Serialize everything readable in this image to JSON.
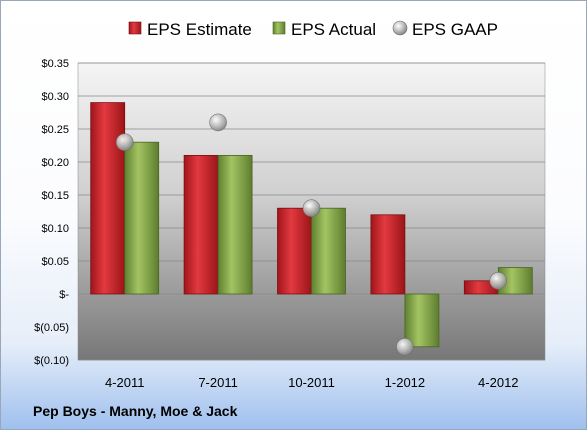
{
  "chart_data": {
    "type": "bar",
    "title": "",
    "footer": "Pep Boys - Manny, Moe & Jack",
    "xlabel": "",
    "ylabel": "",
    "categories": [
      "4-2011",
      "7-2011",
      "10-2011",
      "1-2012",
      "4-2012"
    ],
    "series": [
      {
        "name": "EPS Estimate",
        "kind": "bar",
        "color": "#d42027",
        "values": [
          0.29,
          0.21,
          0.13,
          0.12,
          0.02
        ]
      },
      {
        "name": "EPS Actual",
        "kind": "bar",
        "color": "#8cb04a",
        "values": [
          0.23,
          0.21,
          0.13,
          -0.08,
          0.04
        ]
      },
      {
        "name": "EPS GAAP",
        "kind": "marker",
        "color": "#a6a6a6",
        "values": [
          0.23,
          0.26,
          0.13,
          -0.08,
          0.02
        ]
      }
    ],
    "ylim": [
      -0.1,
      0.35
    ],
    "yticks": [
      0.35,
      0.3,
      0.25,
      0.2,
      0.15,
      0.1,
      0.05,
      0,
      -0.05,
      -0.1
    ],
    "ytick_labels": [
      "$0.35",
      "$0.30",
      "$0.25",
      "$0.20",
      "$0.15",
      "$0.10",
      "$0.05",
      "$-",
      "$(0.05)",
      "$(0.10)"
    ],
    "grid": true,
    "legend_position": "top"
  }
}
